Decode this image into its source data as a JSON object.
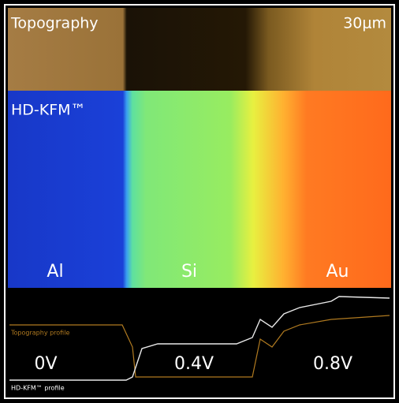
{
  "topography": {
    "title": "Topography",
    "scale": "30μm"
  },
  "kfm": {
    "title": "HD-KFM™",
    "regions": [
      "Al",
      "Si",
      "Au"
    ]
  },
  "profile": {
    "voltages": [
      "0V",
      "0.4V",
      "0.8V"
    ],
    "topography_label": "Topography profile",
    "kfm_label": "HD-KFM™ profile"
  }
}
